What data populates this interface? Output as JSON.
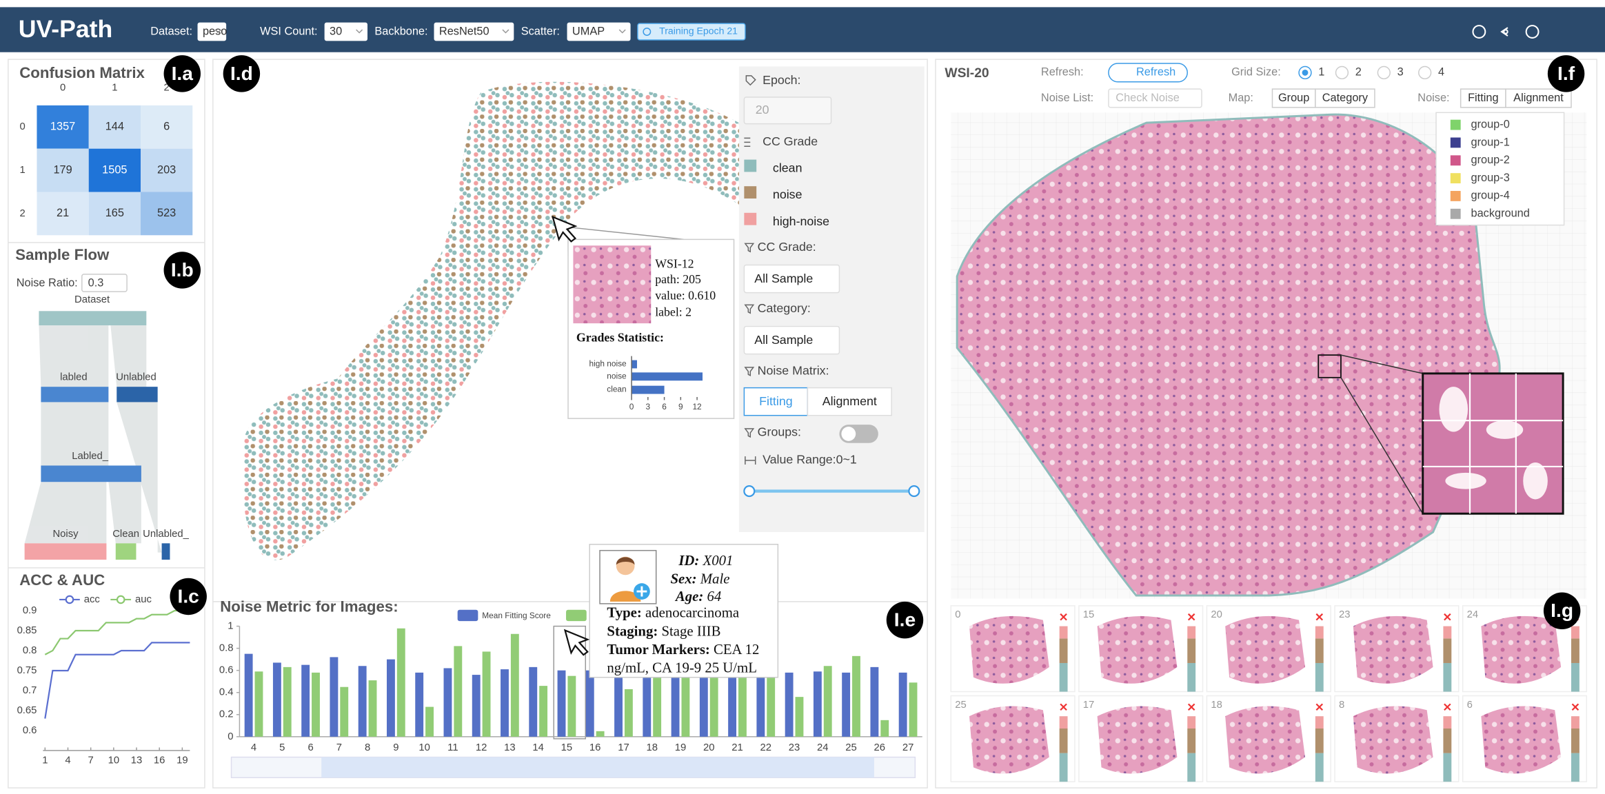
{
  "header": {
    "title": "UV-Path",
    "controls": [
      {
        "label": "Dataset:",
        "value": "peso"
      },
      {
        "label": "WSI Count:",
        "value": "30"
      },
      {
        "label": "Backbone:",
        "value": "ResNet50"
      },
      {
        "label": "Scatter:",
        "value": "UMAP"
      }
    ],
    "status": "Training Epoch 21"
  },
  "badges": [
    "I.a",
    "I.b",
    "I.c",
    "I.d",
    "I.e",
    "I.f",
    "I.g"
  ],
  "confusion_matrix": {
    "type": "heatmap",
    "title": "Confusion Matrix",
    "col_labels": [
      "0",
      "1",
      "2"
    ],
    "row_labels": [
      "0",
      "1",
      "2"
    ],
    "values": [
      [
        1357,
        144,
        6
      ],
      [
        179,
        1505,
        203
      ],
      [
        21,
        165,
        523
      ]
    ]
  },
  "sample_flow": {
    "title": "Sample Flow",
    "noise_ratio_label": "Noise Ratio:",
    "noise_ratio": "0.3",
    "nodes": [
      "Dataset",
      "labled",
      "Unlabled",
      "Labled_",
      "Noisy",
      "Clean",
      "Unlabled_"
    ]
  },
  "acc_auc": {
    "type": "line",
    "title": "ACC & AUC",
    "x": [
      1,
      2,
      3,
      4,
      5,
      6,
      7,
      8,
      9,
      10,
      11,
      12,
      13,
      14,
      15,
      16,
      17,
      18,
      19,
      20
    ],
    "xlim": [
      1,
      20
    ],
    "xticks": [
      1,
      4,
      7,
      10,
      13,
      16,
      19
    ],
    "ylim": [
      0.55,
      0.92
    ],
    "yticks": [
      0.6,
      0.65,
      0.7,
      0.75,
      0.8,
      0.85,
      0.9
    ],
    "series": [
      {
        "name": "acc",
        "color": "#5b6fd0",
        "values": [
          0.63,
          0.75,
          0.75,
          0.75,
          0.79,
          0.79,
          0.79,
          0.79,
          0.79,
          0.79,
          0.8,
          0.8,
          0.8,
          0.8,
          0.82,
          0.82,
          0.82,
          0.82,
          0.82,
          0.82
        ]
      },
      {
        "name": "auc",
        "color": "#8cc870",
        "values": [
          0.79,
          0.8,
          0.83,
          0.83,
          0.85,
          0.85,
          0.85,
          0.85,
          0.87,
          0.87,
          0.87,
          0.87,
          0.88,
          0.88,
          0.89,
          0.89,
          0.89,
          0.9,
          0.9,
          0.9
        ]
      }
    ]
  },
  "scatter_panel": {
    "tooltip": {
      "title": "WSI-12",
      "lines": [
        "path: 205",
        "value: 0.610",
        "label: 2"
      ],
      "chart": {
        "type": "bar",
        "title": "Grades Statistic:",
        "categories": [
          "high noise",
          "noise",
          "clean"
        ],
        "values": [
          1,
          13,
          6
        ],
        "color": "#4472c4",
        "xlim": [
          0,
          15
        ],
        "xticks": [
          0,
          3,
          6,
          9,
          12
        ]
      }
    },
    "controls": {
      "epoch_label": "Epoch:",
      "epoch": "20",
      "cc_grade_title": "CC Grade",
      "legend": [
        {
          "name": "clean",
          "color": "#8fbcbb"
        },
        {
          "name": "noise",
          "color": "#b0906c"
        },
        {
          "name": "high-noise",
          "color": "#f0a0a0"
        }
      ],
      "grade_filter_label": "CC Grade:",
      "grade_filter": "All Sample",
      "category_label": "Category:",
      "category": "All Sample",
      "noise_matrix_label": "Noise Matrix:",
      "noise_matrix_options": [
        "Fitting",
        "Alignment"
      ],
      "groups_label": "Groups:",
      "value_range_label": "Value Range:0~1"
    }
  },
  "noise_metric": {
    "type": "bar",
    "title": "Noise Metric for Images:",
    "categories": [
      "4",
      "5",
      "6",
      "7",
      "8",
      "9",
      "10",
      "11",
      "12",
      "13",
      "14",
      "15",
      "16",
      "17",
      "18",
      "19",
      "20",
      "21",
      "22",
      "23",
      "24",
      "25",
      "26",
      "27"
    ],
    "ylim": [
      0,
      1
    ],
    "yticks": [
      0,
      0.2,
      0.4,
      0.6,
      0.8,
      1
    ],
    "series": [
      {
        "name": "Mean Fitting Score",
        "color": "#5470c6",
        "values": [
          0.75,
          0.67,
          0.65,
          0.72,
          0.64,
          0.7,
          0.58,
          0.62,
          0.56,
          0.61,
          0.63,
          0.6,
          0.6,
          0.6,
          0.6,
          0.6,
          0.6,
          0.58,
          0.6,
          0.58,
          0.59,
          0.58,
          0.63,
          0.58
        ]
      },
      {
        "color": "#91cc75",
        "values": [
          0.59,
          0.63,
          0.58,
          0.45,
          0.51,
          0.98,
          0.27,
          0.82,
          0.77,
          0.93,
          0.46,
          0.55,
          0.05,
          0.43,
          0.6,
          0.6,
          0.6,
          0.6,
          0.62,
          0.36,
          0.64,
          0.73,
          0.15,
          0.49
        ]
      }
    ]
  },
  "patient_tooltip": {
    "fields": [
      {
        "label": "ID:",
        "value": "X001"
      },
      {
        "label": "Sex:",
        "value": "Male"
      },
      {
        "label": "Age:",
        "value": "64"
      },
      {
        "label": "Type:",
        "value": "adenocarcinoma"
      },
      {
        "label": "Staging:",
        "value": "Stage IIIB"
      },
      {
        "label": "Tumor Markers:",
        "value": "CEA 12"
      }
    ],
    "continuation": "ng/mL, CA 19-9 25 U/mL"
  },
  "wsi_view": {
    "title": "WSI-20",
    "refresh_label": "Refresh:",
    "refresh_button": "Refresh",
    "grid_size_label": "Grid Size:",
    "grid_sizes": [
      "1",
      "2",
      "3",
      "4"
    ],
    "noise_list_label": "Noise List:",
    "noise_list": "Check Noise",
    "map_label": "Map:",
    "map_options": [
      "Group",
      "Category"
    ],
    "noise_label": "Noise:",
    "noise_options": [
      "Fitting",
      "Alignment"
    ],
    "legend": [
      {
        "name": "group-0",
        "color": "#7fd36b"
      },
      {
        "name": "group-1",
        "color": "#3c3f8f"
      },
      {
        "name": "group-2",
        "color": "#d0578a"
      },
      {
        "name": "group-3",
        "color": "#f0e060"
      },
      {
        "name": "group-4",
        "color": "#f4a460"
      },
      {
        "name": "background",
        "color": "#a9a9a9"
      }
    ]
  },
  "thumbnails": [
    "0",
    "15",
    "20",
    "23",
    "24",
    "25",
    "17",
    "18",
    "8",
    "6"
  ]
}
